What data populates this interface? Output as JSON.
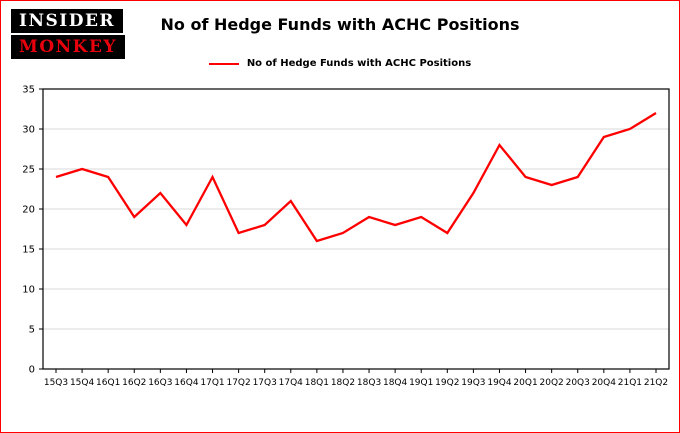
{
  "logo": {
    "line1": "INSIDER",
    "line2": "MONKEY"
  },
  "header": {
    "title": "No of Hedge Funds with ACHC Positions"
  },
  "legend": {
    "label": "No of Hedge Funds with ACHC Positions",
    "color": "#ff0000",
    "position": "top-center"
  },
  "chart_data": {
    "type": "line",
    "title": "No of Hedge Funds with ACHC Positions",
    "categories": [
      "15Q3",
      "15Q4",
      "16Q1",
      "16Q2",
      "16Q3",
      "16Q4",
      "17Q1",
      "17Q2",
      "17Q3",
      "17Q4",
      "18Q1",
      "18Q2",
      "18Q3",
      "18Q4",
      "19Q1",
      "19Q2",
      "19Q3",
      "19Q4",
      "20Q1",
      "20Q2",
      "20Q3",
      "20Q4",
      "21Q1",
      "21Q2"
    ],
    "series": [
      {
        "name": "No of Hedge Funds with ACHC Positions",
        "color": "#ff0000",
        "values": [
          24,
          25,
          24,
          19,
          22,
          18,
          24,
          17,
          18,
          21,
          16,
          17,
          19,
          18,
          19,
          17,
          22,
          28,
          24,
          23,
          24,
          29,
          30,
          32
        ]
      }
    ],
    "xlabel": "",
    "ylabel": "",
    "ylim": [
      0,
      35
    ],
    "yticks": [
      0,
      5,
      10,
      15,
      20,
      25,
      30,
      35
    ],
    "grid": true,
    "grid_color": "#d9d9d9",
    "axis_color": "#000000",
    "background": "#ffffff",
    "border_color": "#ff0000",
    "legend_position": "top"
  }
}
